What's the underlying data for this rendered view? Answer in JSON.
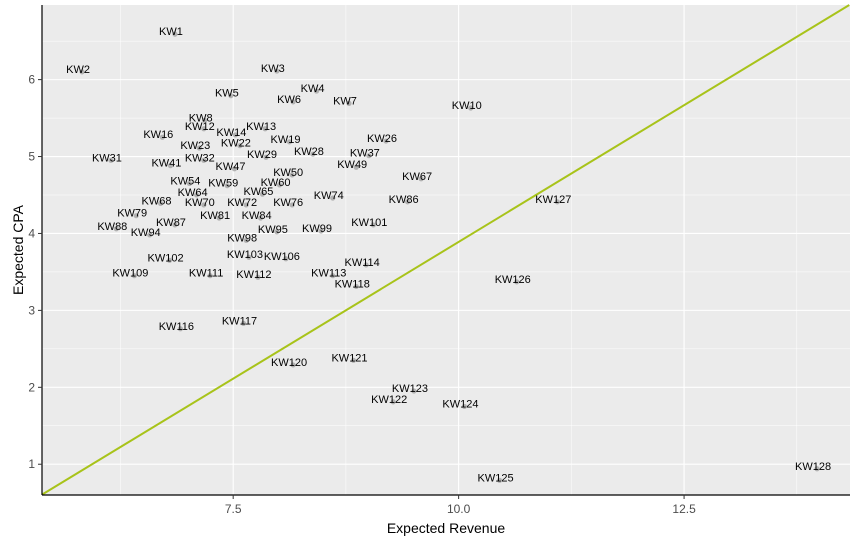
{
  "chart_data": {
    "type": "scatter",
    "title": "",
    "xlabel": "Expected Revenue",
    "ylabel": "Expected CPA",
    "xlim": [
      5.38,
      14.34
    ],
    "ylim": [
      0.6,
      6.97
    ],
    "xticks": [
      7.5,
      10.0,
      12.5
    ],
    "xtick_labels": [
      "7.5",
      "10.0",
      "12.5"
    ],
    "yticks": [
      1,
      2,
      3,
      4,
      5,
      6
    ],
    "ytick_labels": [
      "1",
      "2",
      "3",
      "4",
      "5",
      "6"
    ],
    "grid": true,
    "reference_line": {
      "slope": 0.711,
      "intercept": -3.22,
      "color": "#a8c31a"
    },
    "point_color": "#999999",
    "points": [
      {
        "label": "KW1",
        "x": 6.81,
        "y": 6.63
      },
      {
        "label": "KW2",
        "x": 5.78,
        "y": 6.14
      },
      {
        "label": "KW3",
        "x": 7.94,
        "y": 6.15
      },
      {
        "label": "KW4",
        "x": 8.38,
        "y": 5.89
      },
      {
        "label": "KW5",
        "x": 7.43,
        "y": 5.83
      },
      {
        "label": "KW6",
        "x": 8.12,
        "y": 5.75
      },
      {
        "label": "KW7",
        "x": 8.74,
        "y": 5.73
      },
      {
        "label": "KW10",
        "x": 10.09,
        "y": 5.67
      },
      {
        "label": "KW8",
        "x": 7.14,
        "y": 5.51
      },
      {
        "label": "KW12",
        "x": 7.13,
        "y": 5.4
      },
      {
        "label": "KW13",
        "x": 7.81,
        "y": 5.4
      },
      {
        "label": "KW14",
        "x": 7.48,
        "y": 5.32
      },
      {
        "label": "KW16",
        "x": 6.67,
        "y": 5.29
      },
      {
        "label": "KW26",
        "x": 9.15,
        "y": 5.24
      },
      {
        "label": "KW19",
        "x": 8.08,
        "y": 5.23
      },
      {
        "label": "KW23",
        "x": 7.08,
        "y": 5.15
      },
      {
        "label": "KW22",
        "x": 7.53,
        "y": 5.18
      },
      {
        "label": "KW28",
        "x": 8.34,
        "y": 5.07
      },
      {
        "label": "KW37",
        "x": 8.96,
        "y": 5.05
      },
      {
        "label": "KW29",
        "x": 7.82,
        "y": 5.03
      },
      {
        "label": "KW31",
        "x": 6.1,
        "y": 4.99
      },
      {
        "label": "KW32",
        "x": 7.13,
        "y": 4.99
      },
      {
        "label": "KW41",
        "x": 6.76,
        "y": 4.92
      },
      {
        "label": "KW49",
        "x": 8.82,
        "y": 4.9
      },
      {
        "label": "KW47",
        "x": 7.47,
        "y": 4.88
      },
      {
        "label": "KW50",
        "x": 8.11,
        "y": 4.8
      },
      {
        "label": "KW67",
        "x": 9.54,
        "y": 4.75
      },
      {
        "label": "KW54",
        "x": 6.97,
        "y": 4.69
      },
      {
        "label": "KW59",
        "x": 7.39,
        "y": 4.66
      },
      {
        "label": "KW60",
        "x": 7.97,
        "y": 4.67
      },
      {
        "label": "KW65",
        "x": 7.78,
        "y": 4.55
      },
      {
        "label": "KW64",
        "x": 7.05,
        "y": 4.54
      },
      {
        "label": "KW74",
        "x": 8.56,
        "y": 4.5
      },
      {
        "label": "KW86",
        "x": 9.39,
        "y": 4.45
      },
      {
        "label": "KW127",
        "x": 11.05,
        "y": 4.45
      },
      {
        "label": "KW68",
        "x": 6.65,
        "y": 4.43
      },
      {
        "label": "KW70",
        "x": 7.13,
        "y": 4.41
      },
      {
        "label": "KW72",
        "x": 7.6,
        "y": 4.41
      },
      {
        "label": "KW76",
        "x": 8.11,
        "y": 4.41
      },
      {
        "label": "KW79",
        "x": 6.38,
        "y": 4.27
      },
      {
        "label": "KW81",
        "x": 7.3,
        "y": 4.24
      },
      {
        "label": "KW84",
        "x": 7.76,
        "y": 4.24
      },
      {
        "label": "KW87",
        "x": 6.81,
        "y": 4.15
      },
      {
        "label": "KW101",
        "x": 9.01,
        "y": 4.15
      },
      {
        "label": "KW88",
        "x": 6.16,
        "y": 4.1
      },
      {
        "label": "KW99",
        "x": 8.43,
        "y": 4.07
      },
      {
        "label": "KW95",
        "x": 7.94,
        "y": 4.06
      },
      {
        "label": "KW94",
        "x": 6.53,
        "y": 4.02
      },
      {
        "label": "KW98",
        "x": 7.6,
        "y": 3.95
      },
      {
        "label": "KW102",
        "x": 6.75,
        "y": 3.69
      },
      {
        "label": "KW103",
        "x": 7.63,
        "y": 3.73
      },
      {
        "label": "KW106",
        "x": 8.04,
        "y": 3.71
      },
      {
        "label": "KW114",
        "x": 8.93,
        "y": 3.63
      },
      {
        "label": "KW109",
        "x": 6.36,
        "y": 3.49
      },
      {
        "label": "KW111",
        "x": 7.2,
        "y": 3.49
      },
      {
        "label": "KW112",
        "x": 7.73,
        "y": 3.47
      },
      {
        "label": "KW113",
        "x": 8.56,
        "y": 3.49
      },
      {
        "label": "KW126",
        "x": 10.6,
        "y": 3.41
      },
      {
        "label": "KW118",
        "x": 8.82,
        "y": 3.35
      },
      {
        "label": "KW116",
        "x": 6.87,
        "y": 2.8
      },
      {
        "label": "KW117",
        "x": 7.57,
        "y": 2.87
      },
      {
        "label": "KW120",
        "x": 8.12,
        "y": 2.33
      },
      {
        "label": "KW121",
        "x": 8.79,
        "y": 2.39
      },
      {
        "label": "KW123",
        "x": 9.46,
        "y": 1.99
      },
      {
        "label": "KW122",
        "x": 9.23,
        "y": 1.85
      },
      {
        "label": "KW124",
        "x": 10.02,
        "y": 1.79
      },
      {
        "label": "KW125",
        "x": 10.41,
        "y": 0.83
      },
      {
        "label": "KW128",
        "x": 13.93,
        "y": 0.98
      }
    ]
  }
}
